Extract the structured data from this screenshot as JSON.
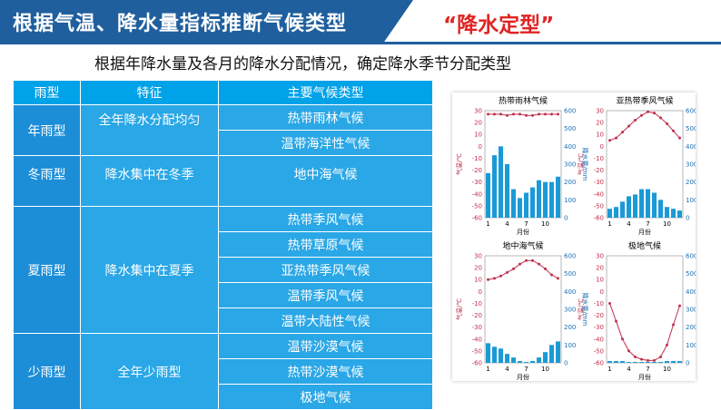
{
  "header": {
    "title": "根据气温、降水量指标推断气候类型",
    "tag": "“降水定型”"
  },
  "subtitle": "根据年降水量及各月的降水分配情况，确定降水季节分配类型",
  "table": {
    "headers": [
      "雨型",
      "特征",
      "主要气候类型"
    ],
    "groups": [
      {
        "type": "年雨型",
        "feature": "全年降水分配均匀",
        "climates": [
          "热带雨林气候",
          "温带海洋性气候"
        ]
      },
      {
        "type": "冬雨型",
        "feature": "降水集中在冬季",
        "climates": [
          "地中海气候"
        ]
      },
      {
        "type": "夏雨型",
        "feature": "降水集中在夏季",
        "climates": [
          "热带季风气候",
          "热带草原气候",
          "亚热带季风气候",
          "温带季风气候",
          "温带大陆性气候"
        ]
      },
      {
        "type": "少雨型",
        "feature": "全年少雨型",
        "climates": [
          "温带沙漠气候",
          "热带沙漠气候",
          "极地气候"
        ]
      }
    ]
  },
  "chart_data": [
    {
      "type": "bar+line",
      "title": "热带雨林气候",
      "xlabel": "月份",
      "ylabel_left": "气温/℃",
      "ylabel_right": "降水量/mm",
      "x": [
        1,
        2,
        3,
        4,
        5,
        6,
        7,
        8,
        9,
        10,
        11,
        12
      ],
      "x_ticks": [
        "1",
        "4",
        "7",
        "10"
      ],
      "temp_ticks": [
        "30",
        "20",
        "10",
        "0",
        "-10",
        "-20",
        "-30",
        "-40",
        "-50",
        "-60"
      ],
      "precip_ticks": [
        "600",
        "500",
        "400",
        "300",
        "200",
        "100",
        "0"
      ],
      "temperature": [
        27,
        27,
        27,
        26,
        27,
        27,
        26,
        26,
        27,
        27,
        27,
        27
      ],
      "precipitation": [
        250,
        350,
        400,
        300,
        160,
        110,
        140,
        170,
        210,
        200,
        200,
        230
      ]
    },
    {
      "type": "bar+line",
      "title": "亚热带季风气候",
      "xlabel": "月份",
      "ylabel_left": "气温/℃",
      "ylabel_right": "降水量/mm",
      "x": [
        1,
        2,
        3,
        4,
        5,
        6,
        7,
        8,
        9,
        10,
        11,
        12
      ],
      "x_ticks": [
        "1",
        "4",
        "7",
        "10"
      ],
      "temp_ticks": [
        "30",
        "20",
        "10",
        "0",
        "-10",
        "-20",
        "-30",
        "-40",
        "-50",
        "-60"
      ],
      "precip_ticks": [
        "600",
        "500",
        "400",
        "300",
        "200",
        "100",
        "0"
      ],
      "temperature": [
        5,
        7,
        12,
        17,
        22,
        26,
        29,
        28,
        24,
        19,
        13,
        7
      ],
      "precipitation": [
        50,
        60,
        90,
        120,
        130,
        160,
        160,
        140,
        100,
        60,
        50,
        40
      ]
    },
    {
      "type": "bar+line",
      "title": "地中海气候",
      "xlabel": "月份",
      "ylabel_left": "气温/℃",
      "ylabel_right": "降水量/mm",
      "x": [
        1,
        2,
        3,
        4,
        5,
        6,
        7,
        8,
        9,
        10,
        11,
        12
      ],
      "x_ticks": [
        "1",
        "4",
        "7",
        "10"
      ],
      "temp_ticks": [
        "30",
        "20",
        "10",
        "0",
        "-10",
        "-20",
        "-30",
        "-40",
        "-50",
        "-60"
      ],
      "precip_ticks": [
        "600",
        "500",
        "400",
        "300",
        "200",
        "100",
        "0"
      ],
      "temperature": [
        10,
        11,
        13,
        16,
        19,
        23,
        26,
        26,
        23,
        19,
        14,
        11
      ],
      "precipitation": [
        110,
        90,
        80,
        50,
        30,
        10,
        5,
        10,
        30,
        60,
        100,
        120
      ]
    },
    {
      "type": "bar+line",
      "title": "极地气候",
      "xlabel": "月份",
      "ylabel_left": "气温/℃",
      "ylabel_right": "降水量/mm",
      "x": [
        1,
        2,
        3,
        4,
        5,
        6,
        7,
        8,
        9,
        10,
        11,
        12
      ],
      "x_ticks": [
        "1",
        "4",
        "7",
        "10"
      ],
      "temp_ticks": [
        "30",
        "20",
        "10",
        "0",
        "-10",
        "-20",
        "-30",
        "-40",
        "-50",
        "-60"
      ],
      "precip_ticks": [
        "600",
        "500",
        "400",
        "300",
        "200",
        "100",
        "0"
      ],
      "temperature": [
        -10,
        -25,
        -40,
        -50,
        -55,
        -57,
        -58,
        -58,
        -55,
        -45,
        -28,
        -12
      ],
      "precipitation": [
        10,
        10,
        10,
        5,
        5,
        5,
        5,
        5,
        5,
        10,
        10,
        10
      ]
    }
  ],
  "colors": {
    "title_bg": "#1f5f9e",
    "tag": "#e02424",
    "table_header": "#00a2e8",
    "table_cell": "#2aa7e6",
    "temp_line": "#c0304c",
    "precip_bar": "#1a9ad6"
  }
}
